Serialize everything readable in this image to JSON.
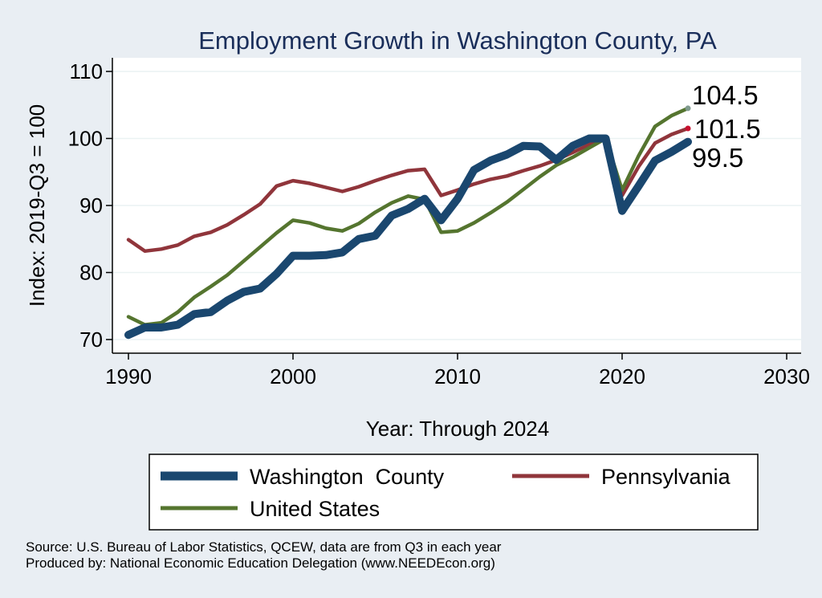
{
  "chart_data": {
    "type": "line",
    "title": "Employment Growth in Washington County, PA",
    "xlabel": "Year: Through 2024",
    "ylabel": "Index: 2019-Q3 = 100",
    "xlim": [
      1990,
      2030
    ],
    "ylim": [
      69,
      111
    ],
    "xticks": [
      1990,
      2000,
      2010,
      2020,
      2030
    ],
    "yticks": [
      70,
      80,
      90,
      100,
      110
    ],
    "grid": true,
    "legend_position": "bottom",
    "x": [
      1990,
      1991,
      1992,
      1993,
      1994,
      1995,
      1996,
      1997,
      1998,
      1999,
      2000,
      2001,
      2002,
      2003,
      2004,
      2005,
      2006,
      2007,
      2008,
      2009,
      2010,
      2011,
      2012,
      2013,
      2014,
      2015,
      2016,
      2017,
      2018,
      2019,
      2020,
      2021,
      2022,
      2023,
      2024
    ],
    "series": [
      {
        "name": "Washington  County",
        "color": "#1a476f",
        "values": [
          70.7,
          71.8,
          71.8,
          72.2,
          73.8,
          74.1,
          75.8,
          77.1,
          77.6,
          79.8,
          82.5,
          82.5,
          82.6,
          83.0,
          85.0,
          85.5,
          88.5,
          89.5,
          91.0,
          87.8,
          91.0,
          95.3,
          96.7,
          97.6,
          98.9,
          98.8,
          96.8,
          98.9,
          100.0,
          100.0,
          89.2,
          92.9,
          96.7,
          98.0,
          99.5
        ],
        "end_label": "99.5"
      },
      {
        "name": "Pennsylvania",
        "color": "#90353b",
        "values": [
          84.9,
          83.2,
          83.5,
          84.1,
          85.4,
          86.0,
          87.1,
          88.6,
          90.2,
          92.9,
          93.7,
          93.3,
          92.7,
          92.1,
          92.8,
          93.7,
          94.5,
          95.2,
          95.4,
          91.5,
          92.3,
          93.2,
          93.9,
          94.4,
          95.2,
          95.9,
          96.8,
          97.9,
          99.1,
          100.0,
          91.5,
          95.8,
          99.3,
          100.6,
          101.5
        ],
        "end_label": "101.5"
      },
      {
        "name": "United States",
        "color": "#55752f",
        "values": [
          73.4,
          72.2,
          72.5,
          74.1,
          76.3,
          77.9,
          79.6,
          81.7,
          83.8,
          85.9,
          87.8,
          87.4,
          86.6,
          86.2,
          87.3,
          89.0,
          90.4,
          91.4,
          90.9,
          86.0,
          86.2,
          87.4,
          88.9,
          90.5,
          92.4,
          94.3,
          96.0,
          97.2,
          98.6,
          100.0,
          92.3,
          97.4,
          101.8,
          103.4,
          104.5
        ],
        "end_label": "104.5"
      }
    ]
  },
  "source_line": "Source: U.S. Bureau of Labor Statistics, QCEW, data are from Q3 in each year",
  "produced_line": "Produced by: National Economic Education Delegation (www.NEEDEcon.org)"
}
